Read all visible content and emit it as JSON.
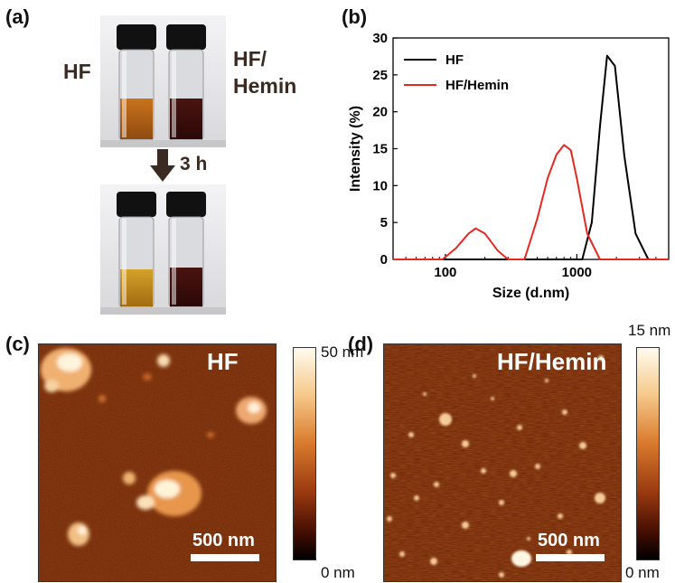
{
  "panel_a": {
    "label": "(a)",
    "left_vial_label": "HF",
    "right_vial_label_line1": "HF/",
    "right_vial_label_line2": "Hemin",
    "arrow_label": "3 h"
  },
  "panel_b": {
    "label": "(b)"
  },
  "panel_c": {
    "label": "(c)",
    "image_title": "HF",
    "scale_bar_label": "500 nm",
    "colorbar_max": "50 nm",
    "colorbar_min": "0 nm"
  },
  "panel_d": {
    "label": "(d)",
    "image_title": "HF/Hemin",
    "scale_bar_label": "500 nm",
    "colorbar_max": "15 nm",
    "colorbar_min": "0 nm"
  },
  "chart_data": {
    "type": "line",
    "xlabel": "Size (d.nm)",
    "ylabel": "Intensity (%)",
    "x_scale": "log",
    "xlim": [
      40,
      5000
    ],
    "ylim": [
      0,
      30
    ],
    "x_ticks": [
      100,
      1000
    ],
    "y_ticks": [
      0,
      5,
      10,
      15,
      20,
      25,
      30
    ],
    "legend_position": "top-left",
    "grid": false,
    "series": [
      {
        "name": "HF",
        "color": "#000000",
        "x": [
          40,
          1100,
          1300,
          1500,
          1700,
          1950,
          2300,
          2800,
          3500,
          5000
        ],
        "y": [
          0,
          0,
          5,
          18,
          27.6,
          26.2,
          14,
          3.5,
          0,
          0
        ]
      },
      {
        "name": "HF/Hemin",
        "color": "#e8271f",
        "x": [
          40,
          95,
          120,
          150,
          170,
          200,
          250,
          300,
          400,
          500,
          600,
          700,
          800,
          900,
          1000,
          1200,
          1500,
          5000
        ],
        "y": [
          0,
          0,
          1.5,
          3.5,
          4.2,
          3.5,
          1.2,
          0,
          0,
          5.5,
          11,
          14.2,
          15.5,
          14.8,
          11,
          3.5,
          0,
          0
        ]
      }
    ]
  }
}
